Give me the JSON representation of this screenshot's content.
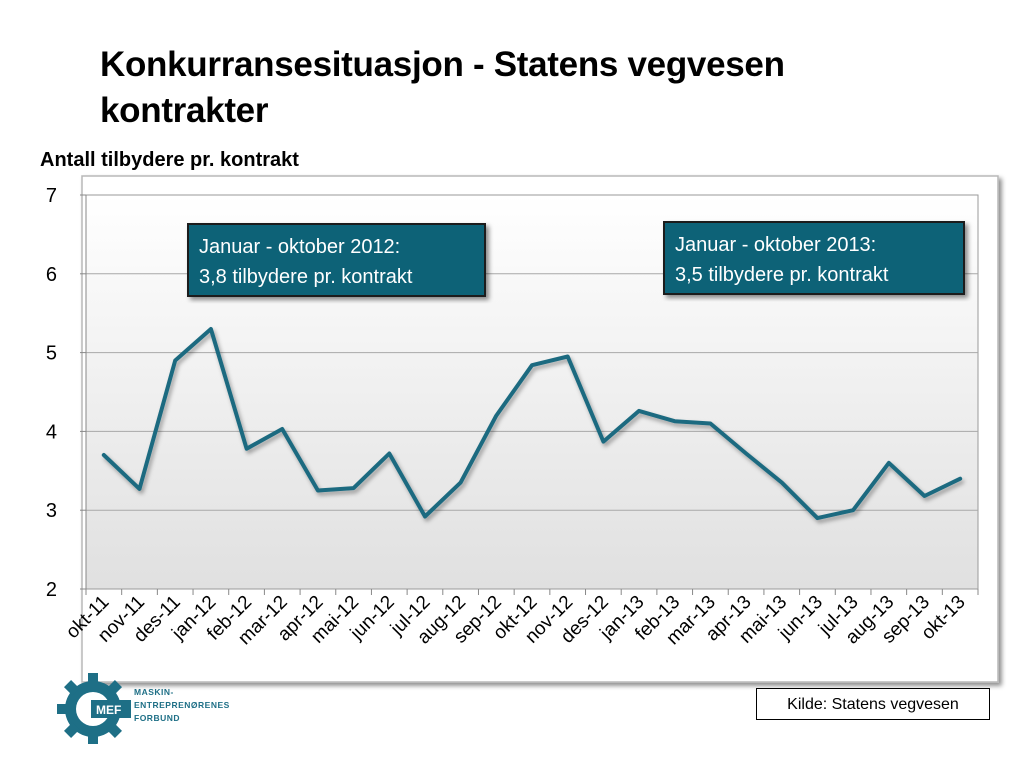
{
  "page": {
    "title": "Konkurransesituasjon - Statens vegvesen kontrakter",
    "source": "Kilde: Statens vegvesen"
  },
  "logo": {
    "name": "MEF",
    "lines": [
      "MASKIN-",
      "ENTREPRENØRENES",
      "FORBUND"
    ],
    "color": "#1e6f86"
  },
  "annotations": [
    {
      "line1": "Januar - oktober 2012:",
      "line2": "3,8 tilbydere pr. kontrakt"
    },
    {
      "line1": "Januar - oktober 2013:",
      "line2": "3,5 tilbydere pr. kontrakt"
    }
  ],
  "chart_data": {
    "type": "line",
    "title": "",
    "ylabel": "Antall tilbydere pr. kontrakt",
    "xlabel": "",
    "ylim": [
      2,
      7
    ],
    "yticks": [
      2,
      3,
      4,
      5,
      6,
      7
    ],
    "grid": true,
    "categories": [
      "okt-11",
      "nov-11",
      "des-11",
      "jan-12",
      "feb-12",
      "mar-12",
      "apr-12",
      "mai-12",
      "jun-12",
      "jul-12",
      "aug-12",
      "sep-12",
      "okt-12",
      "nov-12",
      "des-12",
      "jan-13",
      "feb-13",
      "mar-13",
      "apr-13",
      "mai-13",
      "jun-13",
      "jul-13",
      "aug-13",
      "sep-13",
      "okt-13"
    ],
    "series": [
      {
        "name": "",
        "color": "#1c6b80",
        "values": [
          3.7,
          3.27,
          4.9,
          5.3,
          3.78,
          4.03,
          3.25,
          3.28,
          3.72,
          2.92,
          3.35,
          4.2,
          4.84,
          4.95,
          3.87,
          4.26,
          4.13,
          4.1,
          3.72,
          3.35,
          2.9,
          3.0,
          3.6,
          3.18,
          3.4
        ]
      }
    ]
  },
  "colors": {
    "line": "#1c6b80",
    "box_fill": "#0d6277",
    "plot_bg_top": "#ffffff",
    "plot_bg_bottom": "#e2e2e2"
  }
}
